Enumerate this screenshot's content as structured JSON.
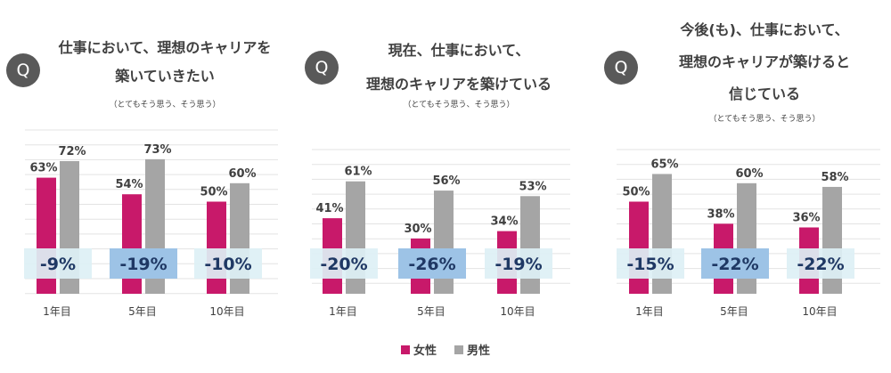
{
  "legend": {
    "items": [
      {
        "label": "女性",
        "color": "#C8196A"
      },
      {
        "label": "男性",
        "color": "#A5A5A5"
      }
    ]
  },
  "colors": {
    "female": "#C8196A",
    "male": "#A5A5A5",
    "badge_light": "#DDF0F5",
    "badge_dark": "#9DC3E6",
    "badge_text": "#1F3864",
    "q_badge": "#595959"
  },
  "q_label": "Q",
  "chart_data": [
    {
      "type": "bar",
      "title_lines": [
        "仕事において、理想のキャリアを",
        "築いていきたい"
      ],
      "subtitle": "（とてもそう思う、そう思う）",
      "categories": [
        "1年目",
        "5年目",
        "10年目"
      ],
      "series": [
        {
          "name": "女性",
          "values": [
            63,
            54,
            50
          ]
        },
        {
          "name": "男性",
          "values": [
            72,
            73,
            60
          ]
        }
      ],
      "value_labels": {
        "女性": [
          "63%",
          "54%",
          "50%"
        ],
        "男性": [
          "72%",
          "73%",
          "60%"
        ]
      },
      "gaps": [
        "-9%",
        "-19%",
        "-10%"
      ],
      "gap_highlight": [
        false,
        true,
        false
      ]
    },
    {
      "type": "bar",
      "title_lines": [
        "現在、仕事において、",
        "理想のキャリアを築けている"
      ],
      "subtitle": "（とてもそう思う、そう思う）",
      "categories": [
        "1年目",
        "5年目",
        "10年目"
      ],
      "series": [
        {
          "name": "女性",
          "values": [
            41,
            30,
            34
          ]
        },
        {
          "name": "男性",
          "values": [
            61,
            56,
            53
          ]
        }
      ],
      "value_labels": {
        "女性": [
          "41%",
          "30%",
          "34%"
        ],
        "男性": [
          "61%",
          "56%",
          "53%"
        ]
      },
      "gaps": [
        "-20%",
        "-26%",
        "-19%"
      ],
      "gap_highlight": [
        false,
        true,
        false
      ]
    },
    {
      "type": "bar",
      "title_lines": [
        "今後(も)、仕事において、",
        "理想のキャリアが築けると",
        "信じている"
      ],
      "subtitle": "（とてもそう思う、そう思う）",
      "categories": [
        "1年目",
        "5年目",
        "10年目"
      ],
      "series": [
        {
          "name": "女性",
          "values": [
            50,
            38,
            36
          ]
        },
        {
          "name": "男性",
          "values": [
            65,
            60,
            58
          ]
        }
      ],
      "value_labels": {
        "女性": [
          "50%",
          "38%",
          "36%"
        ],
        "男性": [
          "65%",
          "60%",
          "58%"
        ]
      },
      "gaps": [
        "-15%",
        "-22%",
        "-22%"
      ],
      "gap_highlight": [
        false,
        true,
        false
      ]
    }
  ]
}
